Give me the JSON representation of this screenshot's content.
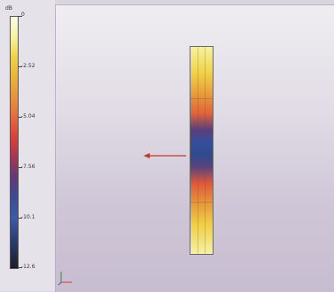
{
  "legend": {
    "unit": "dB",
    "ticks": [
      "0",
      "-2.52",
      "-5.04",
      "-7.56",
      "-10.1",
      "-12.6"
    ]
  },
  "colors": {
    "arrow": "#c0392b",
    "axis_x": "#d23a2a",
    "axis_y": "#3a8a3a"
  },
  "icons": {
    "probe": "arrow-left-icon",
    "triad": "xyz-axis-icon"
  }
}
